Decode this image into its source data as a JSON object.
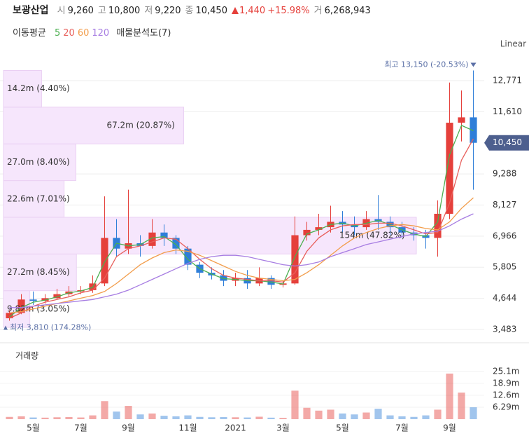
{
  "header": {
    "name": "보광산업",
    "fields": [
      {
        "label": "시",
        "value": "9,260"
      },
      {
        "label": "고",
        "value": "10,800"
      },
      {
        "label": "저",
        "value": "9,220"
      },
      {
        "label": "종",
        "value": "10,450"
      }
    ],
    "change": "1,440",
    "change_pct": "+15.98%",
    "volume_label": "거",
    "volume": "6,268,943"
  },
  "toolbar": {
    "ma_label": "이동평균",
    "volume_profile": "매물분석도(7)"
  },
  "chart_data": {
    "type": "candlestick",
    "scale": "Linear",
    "categories": [
      null,
      null,
      "5월",
      null,
      null,
      null,
      "7월",
      null,
      null,
      null,
      "9월",
      null,
      null,
      null,
      null,
      "11월",
      null,
      null,
      null,
      "2021",
      null,
      null,
      null,
      "3월",
      null,
      null,
      null,
      null,
      "5월",
      null,
      null,
      null,
      null,
      "7월",
      null,
      null,
      null,
      "9월",
      null,
      null
    ],
    "open": [
      3900,
      4100,
      4600,
      4550,
      4650,
      4800,
      4900,
      4950,
      5200,
      6900,
      6500,
      6700,
      6600,
      7100,
      6900,
      6500,
      5900,
      5600,
      5500,
      5300,
      5400,
      5200,
      5400,
      5150,
      5200,
      7000,
      7200,
      7300,
      7500,
      7400,
      7300,
      7600,
      7500,
      7300,
      7100,
      7000,
      6900,
      7800,
      11200,
      11400
    ],
    "high": [
      4200,
      4800,
      4900,
      4800,
      5000,
      5100,
      5100,
      5500,
      8450,
      7600,
      8700,
      7000,
      7600,
      7400,
      7000,
      6600,
      6000,
      5800,
      5700,
      5600,
      5700,
      5800,
      5500,
      5300,
      7700,
      7500,
      7800,
      8100,
      7900,
      7700,
      7900,
      8500,
      7700,
      7500,
      7300,
      7200,
      8300,
      12700,
      12400,
      13150
    ],
    "low": [
      3810,
      4050,
      4400,
      4450,
      4600,
      4700,
      4800,
      4850,
      5100,
      6200,
      6300,
      6200,
      6500,
      6600,
      6300,
      5700,
      5400,
      5350,
      5100,
      5100,
      5000,
      5100,
      5000,
      5050,
      5150,
      6800,
      7000,
      7100,
      7100,
      7000,
      7200,
      7200,
      7000,
      6900,
      6800,
      6500,
      6200,
      7600,
      10500,
      8700
    ],
    "close": [
      4100,
      4600,
      4550,
      4650,
      4800,
      4900,
      4950,
      5200,
      6900,
      6500,
      6700,
      6600,
      7100,
      6900,
      6500,
      5900,
      5600,
      5500,
      5300,
      5400,
      5200,
      5400,
      5150,
      5200,
      7000,
      7200,
      7300,
      7500,
      7400,
      7300,
      7600,
      7500,
      7300,
      7100,
      7000,
      6900,
      7800,
      11200,
      11400,
      10450
    ],
    "up_color": "#e5403b",
    "down_color": "#2f7ed8",
    "ylim": [
      3090,
      13425
    ],
    "yticks": [
      {
        "value": 3483,
        "label": "3,483"
      },
      {
        "value": 4644,
        "label": "4,644"
      },
      {
        "value": 5805,
        "label": "5,805"
      },
      {
        "value": 6966,
        "label": "6,966"
      },
      {
        "value": 8127,
        "label": "8,127"
      },
      {
        "value": 9288,
        "label": "9,288"
      },
      {
        "value": 11610,
        "label": "11,610"
      },
      {
        "value": 12771,
        "label": "12,771"
      }
    ],
    "grid": true,
    "last_price": {
      "value": 10450,
      "label": "10,450"
    },
    "high_annotation": {
      "value": 13150,
      "label": "최고 13,150 (-20.53%)"
    },
    "low_annotation": {
      "value": 3810,
      "label": "최저 3,810 (174.28%)"
    },
    "moving_averages": [
      {
        "name": "5",
        "color": "#4caf50",
        "values": [
          3950,
          4300,
          4500,
          4580,
          4700,
          4850,
          4920,
          5050,
          6000,
          6700,
          6600,
          6650,
          6900,
          6950,
          6650,
          6100,
          5750,
          5550,
          5380,
          5350,
          5300,
          5300,
          5250,
          5180,
          6200,
          7050,
          7200,
          7400,
          7450,
          7350,
          7450,
          7550,
          7400,
          7200,
          7050,
          6950,
          7500,
          10000,
          11100,
          10900
        ]
      },
      {
        "name": "20",
        "color": "#e8605c",
        "values": [
          3900,
          4100,
          4350,
          4500,
          4600,
          4700,
          4850,
          4950,
          5400,
          6200,
          6500,
          6600,
          6750,
          6900,
          6850,
          6500,
          6100,
          5750,
          5500,
          5400,
          5350,
          5300,
          5300,
          5250,
          5600,
          6400,
          6900,
          7200,
          7350,
          7400,
          7400,
          7450,
          7450,
          7350,
          7200,
          7050,
          7100,
          8200,
          9800,
          10600
        ]
      },
      {
        "name": "60",
        "color": "#f29d4b",
        "values": [
          4100,
          4150,
          4250,
          4350,
          4450,
          4550,
          4650,
          4750,
          4900,
          5200,
          5550,
          5900,
          6150,
          6350,
          6450,
          6400,
          6250,
          6050,
          5850,
          5650,
          5500,
          5400,
          5350,
          5300,
          5350,
          5600,
          5900,
          6250,
          6600,
          6900,
          7100,
          7250,
          7350,
          7400,
          7350,
          7250,
          7200,
          7500,
          8000,
          8400
        ]
      },
      {
        "name": "120",
        "color": "#a77de2",
        "values": [
          4300,
          4300,
          4350,
          4400,
          4450,
          4500,
          4550,
          4600,
          4700,
          4800,
          4950,
          5150,
          5350,
          5550,
          5750,
          5950,
          6100,
          6200,
          6250,
          6250,
          6200,
          6100,
          6000,
          5900,
          5850,
          5900,
          6000,
          6200,
          6350,
          6500,
          6650,
          6750,
          6850,
          6950,
          7050,
          7100,
          7150,
          7350,
          7600,
          7800
        ]
      }
    ],
    "volume_profile": {
      "bins": [
        3560,
        4930,
        6300,
        7670,
        9040,
        10410,
        11780,
        13150
      ],
      "values": [
        9820000,
        27200000,
        154000000,
        22600000,
        27000000,
        67200000,
        14200000
      ],
      "value_labels": [
        "9.82m (3.05%)",
        "27.2m (8.45%)",
        "154m (47.82%)",
        "22.6m (7.01%)",
        "27.0m (8.40%)",
        "67.2m (20.87%)",
        "14.2m (4.40%)"
      ],
      "color": "#f6e6fc"
    },
    "volume": {
      "title": "거래량",
      "values": [
        1200000,
        1500000,
        900000,
        800000,
        1000000,
        1100000,
        900000,
        2000000,
        9500000,
        4000000,
        7000000,
        2500000,
        3000000,
        1800000,
        1500000,
        2000000,
        1200000,
        1000000,
        1100000,
        1000000,
        900000,
        1300000,
        800000,
        700000,
        15000000,
        6000000,
        4500000,
        5000000,
        3000000,
        2500000,
        3500000,
        5500000,
        2000000,
        1500000,
        1200000,
        2000000,
        5000000,
        24000000,
        14000000,
        6268943
      ],
      "ylim": [
        0,
        38000000
      ],
      "yticks": [
        {
          "value": 6290000,
          "label": "6.29m"
        },
        {
          "value": 12600000,
          "label": "12.6m"
        },
        {
          "value": 18900000,
          "label": "18.9m"
        },
        {
          "value": 25100000,
          "label": "25.1m"
        }
      ]
    }
  }
}
